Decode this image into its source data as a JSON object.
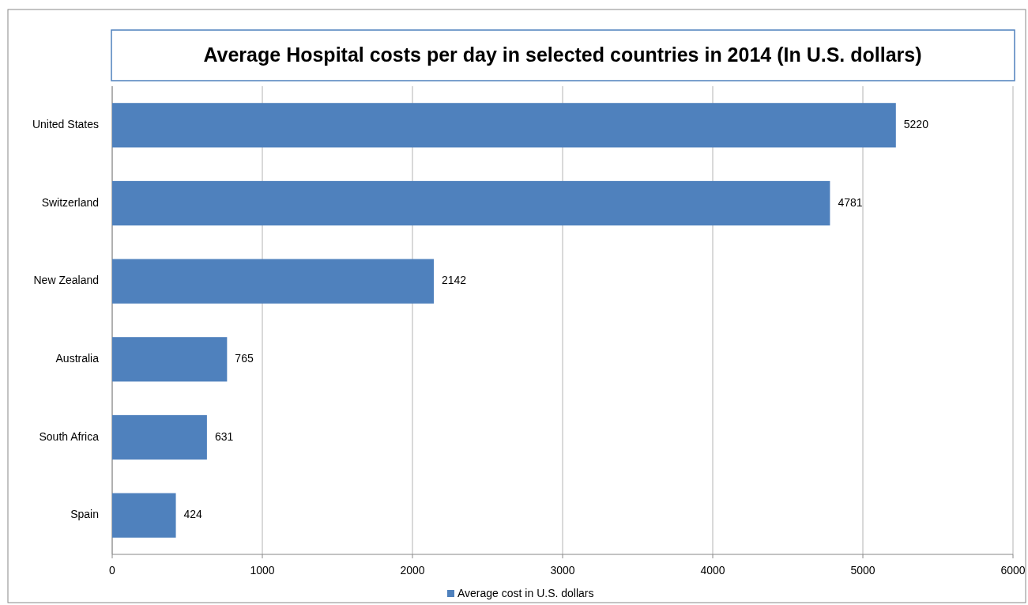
{
  "chart_data": {
    "type": "bar",
    "orientation": "horizontal",
    "title": "Average Hospital costs per day in selected countries in 2014 (In U.S. dollars)",
    "categories": [
      "United States",
      "Switzerland",
      "New Zealand",
      "Australia",
      "South Africa",
      "Spain"
    ],
    "series": [
      {
        "name": "Average cost in U.S. dollars",
        "color": "#4f81bd",
        "values": [
          5220,
          4781,
          2142,
          765,
          631,
          424
        ]
      }
    ],
    "xlim": [
      0,
      6000
    ],
    "xticks": [
      0,
      1000,
      2000,
      3000,
      4000,
      5000,
      6000
    ],
    "grid": "x",
    "legend": "bottom",
    "data_labels": true
  }
}
